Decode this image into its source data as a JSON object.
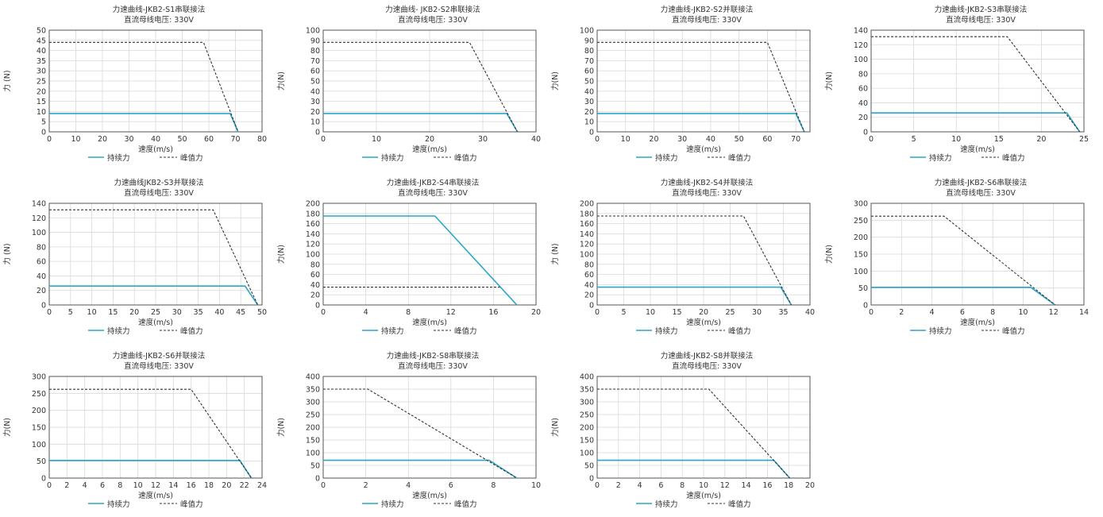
{
  "colors": {
    "continuous": "#2aa6c9",
    "peak": "#333333",
    "grid": "#d9d9d9",
    "axis": "#555555"
  },
  "legend": {
    "continuous": "持续力",
    "peak": "峰值力"
  },
  "chart_data": [
    {
      "type": "line",
      "title": "力速曲线-JKB2-S1串联接法",
      "subtitle": "直流母线电压: 330V",
      "xlabel": "速度(m/s)",
      "ylabel": "力 (N)",
      "xlim": [
        0,
        80
      ],
      "xticks": [
        0,
        10,
        20,
        30,
        40,
        50,
        60,
        70,
        80
      ],
      "ylim": [
        0,
        50
      ],
      "yticks": [
        0,
        5,
        10,
        15,
        20,
        25,
        30,
        35,
        40,
        45,
        50
      ],
      "grid": true,
      "legend_position": "bottom",
      "series": [
        {
          "name": "持续力",
          "style": "solid",
          "points": [
            [
              0,
              9
            ],
            [
              68,
              9
            ],
            [
              71,
              0
            ]
          ]
        },
        {
          "name": "峰值力",
          "style": "dashed",
          "points": [
            [
              0,
              44
            ],
            [
              58,
              44
            ],
            [
              71,
              0
            ]
          ]
        }
      ]
    },
    {
      "type": "line",
      "title": "力速曲线- JKB2-S2串联接法",
      "subtitle": "直流母线电压: 330V",
      "xlabel": "速度(m/s)",
      "ylabel": "力(N)",
      "xlim": [
        0,
        40
      ],
      "xticks": [
        0,
        10,
        20,
        30,
        40
      ],
      "ylim": [
        0,
        100
      ],
      "yticks": [
        0,
        10,
        20,
        30,
        40,
        50,
        60,
        70,
        80,
        90,
        100
      ],
      "grid": true,
      "legend_position": "bottom",
      "series": [
        {
          "name": "持续力",
          "style": "solid",
          "points": [
            [
              0,
              18
            ],
            [
              34.5,
              18
            ],
            [
              36.5,
              0
            ]
          ]
        },
        {
          "name": "峰值力",
          "style": "dashed",
          "points": [
            [
              0,
              88
            ],
            [
              27.5,
              88
            ],
            [
              36.5,
              0
            ]
          ]
        }
      ]
    },
    {
      "type": "line",
      "title": "力速曲线-JKB2-S2并联接法",
      "subtitle": "直流母线电压: 330V",
      "xlabel": "速度(m/s)",
      "ylabel": "力(N)",
      "xlim": [
        0,
        75
      ],
      "xticks": [
        0,
        10,
        20,
        30,
        40,
        50,
        60,
        70
      ],
      "ylim": [
        0,
        100
      ],
      "yticks": [
        0,
        10,
        20,
        30,
        40,
        50,
        60,
        70,
        80,
        90,
        100
      ],
      "grid": true,
      "legend_position": "bottom",
      "series": [
        {
          "name": "持续力",
          "style": "solid",
          "points": [
            [
              0,
              18
            ],
            [
              70,
              18
            ],
            [
              73,
              0
            ]
          ]
        },
        {
          "name": "峰值力",
          "style": "dashed",
          "points": [
            [
              0,
              88
            ],
            [
              60,
              88
            ],
            [
              73,
              0
            ]
          ]
        }
      ]
    },
    {
      "type": "line",
      "title": "力速曲线-JKB2-S3串联接法",
      "subtitle": "直流母线电压: 330V",
      "xlabel": "速度(m/s)",
      "ylabel": "力(N)",
      "xlim": [
        0,
        25
      ],
      "xticks": [
        0,
        5,
        10,
        15,
        20,
        25
      ],
      "ylim": [
        0,
        140
      ],
      "yticks": [
        0,
        20,
        40,
        60,
        80,
        100,
        120,
        140
      ],
      "grid": true,
      "legend_position": "bottom",
      "series": [
        {
          "name": "持续力",
          "style": "solid",
          "points": [
            [
              0,
              26
            ],
            [
              23,
              26
            ],
            [
              24.5,
              0
            ]
          ]
        },
        {
          "name": "峰值力",
          "style": "dashed",
          "points": [
            [
              0,
              131
            ],
            [
              16,
              131
            ],
            [
              24.5,
              0
            ]
          ]
        }
      ]
    },
    {
      "type": "line",
      "title": "力速曲线JKB2-S3并联接法",
      "subtitle": "直流母线电压: 330V",
      "xlabel": "速度(m/s)",
      "ylabel": "力 (N)",
      "xlim": [
        0,
        50
      ],
      "xticks": [
        0,
        5,
        10,
        15,
        20,
        25,
        30,
        35,
        40,
        45,
        50
      ],
      "ylim": [
        0,
        140
      ],
      "yticks": [
        0,
        20,
        40,
        60,
        80,
        100,
        120,
        140
      ],
      "grid": true,
      "legend_position": "bottom",
      "series": [
        {
          "name": "持续力",
          "style": "solid",
          "points": [
            [
              0,
              26
            ],
            [
              46,
              26
            ],
            [
              49,
              0
            ]
          ]
        },
        {
          "name": "峰值力",
          "style": "dashed",
          "points": [
            [
              0,
              131
            ],
            [
              38.5,
              131
            ],
            [
              49,
              0
            ]
          ]
        }
      ]
    },
    {
      "type": "line",
      "title": "力速曲线-JKB2-S4串联接法",
      "subtitle": "直流母线电压: 330V",
      "xlabel": "速度(m/s)",
      "ylabel": "力(N)",
      "xlim": [
        0,
        20
      ],
      "xticks": [
        0,
        4,
        8,
        12,
        16,
        20
      ],
      "ylim": [
        0,
        200
      ],
      "yticks": [
        0,
        20,
        40,
        60,
        80,
        100,
        120,
        140,
        160,
        180,
        200
      ],
      "grid": true,
      "legend_position": "bottom",
      "series": [
        {
          "name": "持续力",
          "style": "solid",
          "points": [
            [
              0,
              175
            ],
            [
              10.5,
              175
            ],
            [
              18.2,
              0
            ]
          ]
        },
        {
          "name": "峰值力",
          "style": "dashed",
          "points": [
            [
              0,
              35
            ],
            [
              16.6,
              35
            ]
          ]
        }
      ]
    },
    {
      "type": "line",
      "title": "力速曲线-JKB2-S4并联接法",
      "subtitle": "直流母线电压: 330V",
      "xlabel": "速度(m/s)",
      "ylabel": "力 (N)",
      "xlim": [
        0,
        40
      ],
      "xticks": [
        0,
        5,
        10,
        15,
        20,
        25,
        30,
        35,
        40
      ],
      "ylim": [
        0,
        200
      ],
      "yticks": [
        0,
        20,
        40,
        60,
        80,
        100,
        120,
        140,
        160,
        180,
        200
      ],
      "grid": true,
      "legend_position": "bottom",
      "series": [
        {
          "name": "持续力",
          "style": "solid",
          "points": [
            [
              0,
              35
            ],
            [
              34.5,
              35
            ],
            [
              36.5,
              0
            ]
          ]
        },
        {
          "name": "峰值力",
          "style": "dashed",
          "points": [
            [
              0,
              175
            ],
            [
              27.5,
              175
            ],
            [
              36.5,
              0
            ]
          ]
        }
      ]
    },
    {
      "type": "line",
      "title": "力速曲线-JKB2-S6串联接法",
      "subtitle": "直流母线电压: 330V",
      "xlabel": "速度(m/s)",
      "ylabel": "力(N)",
      "xlim": [
        0,
        14
      ],
      "xticks": [
        0,
        2,
        4,
        6,
        8,
        10,
        12,
        14
      ],
      "ylim": [
        0,
        300
      ],
      "yticks": [
        0,
        50,
        100,
        150,
        200,
        250,
        300
      ],
      "grid": true,
      "legend_position": "bottom",
      "series": [
        {
          "name": "持续力",
          "style": "solid",
          "points": [
            [
              0,
              52
            ],
            [
              10.5,
              52
            ],
            [
              12.1,
              0
            ]
          ]
        },
        {
          "name": "峰值力",
          "style": "dashed",
          "points": [
            [
              0,
              262
            ],
            [
              4.8,
              262
            ],
            [
              12.1,
              0
            ]
          ]
        }
      ]
    },
    {
      "type": "line",
      "title": "力速曲线-JKB2-S6并联接法",
      "subtitle": "直流母线电压: 330V",
      "xlabel": "速度(m/s)",
      "ylabel": "力(N)",
      "xlim": [
        0,
        24
      ],
      "xticks": [
        0,
        2,
        4,
        6,
        8,
        10,
        12,
        14,
        16,
        18,
        20,
        22,
        24
      ],
      "ylim": [
        0,
        300
      ],
      "yticks": [
        0,
        50,
        100,
        150,
        200,
        250,
        300
      ],
      "grid": true,
      "legend_position": "bottom",
      "series": [
        {
          "name": "持续力",
          "style": "solid",
          "points": [
            [
              0,
              52
            ],
            [
              21.5,
              52
            ],
            [
              22.8,
              0
            ]
          ]
        },
        {
          "name": "峰值力",
          "style": "dashed",
          "points": [
            [
              0,
              262
            ],
            [
              16,
              262
            ],
            [
              22.8,
              0
            ]
          ]
        }
      ]
    },
    {
      "type": "line",
      "title": "力速曲线-JKB2-S8串联接法",
      "subtitle": "直流母线电压: 330V",
      "xlabel": "速度(m/s)",
      "ylabel": "力(N)",
      "xlim": [
        0,
        10
      ],
      "xticks": [
        0,
        2,
        4,
        6,
        8,
        10
      ],
      "ylim": [
        0,
        400
      ],
      "yticks": [
        0,
        50,
        100,
        150,
        200,
        250,
        300,
        350,
        400
      ],
      "grid": true,
      "legend_position": "bottom",
      "series": [
        {
          "name": "持续力",
          "style": "solid",
          "points": [
            [
              0,
              70
            ],
            [
              7.8,
              70
            ],
            [
              9.1,
              0
            ]
          ]
        },
        {
          "name": "峰值力",
          "style": "dashed",
          "points": [
            [
              0,
              350
            ],
            [
              2.1,
              350
            ],
            [
              9.1,
              0
            ]
          ]
        }
      ]
    },
    {
      "type": "line",
      "title": "力速曲线-JKB2-S8并联接法",
      "subtitle": "直流母线电压: 330V",
      "xlabel": "速度(m/s)",
      "ylabel": "力(N)",
      "xlim": [
        0,
        20
      ],
      "xticks": [
        0,
        2,
        4,
        6,
        8,
        10,
        12,
        14,
        16,
        18,
        20
      ],
      "ylim": [
        0,
        400
      ],
      "yticks": [
        0,
        50,
        100,
        150,
        200,
        250,
        300,
        350,
        400
      ],
      "grid": true,
      "legend_position": "bottom",
      "series": [
        {
          "name": "持续力",
          "style": "solid",
          "points": [
            [
              0,
              70
            ],
            [
              16.6,
              70
            ],
            [
              18.1,
              0
            ]
          ]
        },
        {
          "name": "峰值力",
          "style": "dashed",
          "points": [
            [
              0,
              350
            ],
            [
              10.5,
              350
            ],
            [
              18.1,
              0
            ]
          ]
        }
      ]
    }
  ]
}
